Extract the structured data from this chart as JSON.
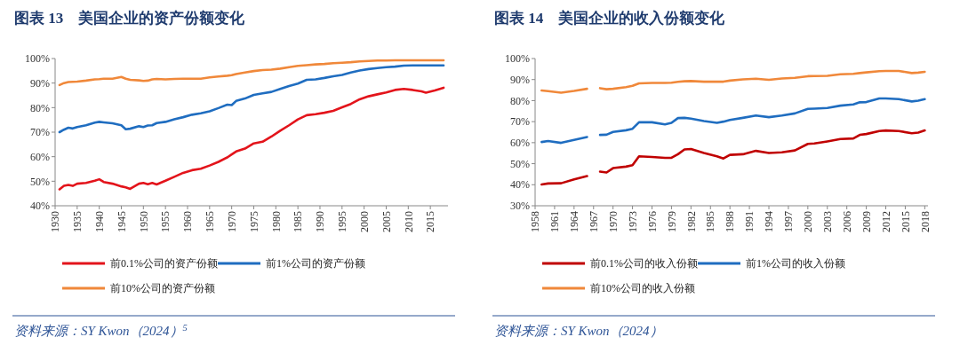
{
  "chart_data": [
    {
      "type": "line",
      "title": "图表 13　美国企业的资产份额变化",
      "legend": "bottom",
      "grid": false,
      "xlim": [
        1930,
        2019
      ],
      "xticks": [
        1930,
        1935,
        1940,
        1945,
        1950,
        1955,
        1960,
        1965,
        1970,
        1975,
        1980,
        1985,
        1990,
        1995,
        2000,
        2005,
        2010,
        2015
      ],
      "ylim": [
        40,
        100
      ],
      "yticks": [
        {
          "value": 40,
          "label": "40%"
        },
        {
          "value": 50,
          "label": "50%"
        },
        {
          "value": 60,
          "label": "60%"
        },
        {
          "value": 70,
          "label": "70%"
        },
        {
          "value": 80,
          "label": "80%"
        },
        {
          "value": 90,
          "label": "90%"
        },
        {
          "value": 100,
          "label": "100%"
        }
      ],
      "x": [
        1931,
        1932,
        1933,
        1934,
        1935,
        1937,
        1939,
        1940,
        1941,
        1943,
        1945,
        1946,
        1947,
        1949,
        1950,
        1951,
        1952,
        1953,
        1955,
        1957,
        1959,
        1961,
        1963,
        1965,
        1967,
        1969,
        1970,
        1971,
        1973,
        1975,
        1977,
        1979,
        1981,
        1983,
        1985,
        1987,
        1989,
        1991,
        1993,
        1995,
        1997,
        1999,
        2001,
        2003,
        2005,
        2007,
        2009,
        2011,
        2013,
        2014,
        2016,
        2018
      ],
      "series": [
        {
          "name": "前0.1%公司的资产份额",
          "color": "#e3141b",
          "values": [
            46.7,
            48.1,
            48.5,
            48.1,
            49.0,
            49.3,
            50.2,
            50.8,
            49.7,
            49.0,
            47.9,
            47.5,
            46.9,
            49.0,
            49.3,
            48.8,
            49.3,
            48.7,
            50.2,
            51.8,
            53.4,
            54.5,
            55.1,
            56.4,
            57.9,
            59.7,
            60.9,
            62.1,
            63.3,
            65.4,
            66.1,
            68.2,
            70.6,
            72.8,
            75.2,
            76.9,
            77.3,
            77.9,
            78.7,
            80.1,
            81.5,
            83.4,
            84.6,
            85.4,
            86.2,
            87.2,
            87.6,
            87.2,
            86.6,
            86.1,
            87.0,
            88.1
          ]
        },
        {
          "name": "前1%公司的资产份额",
          "color": "#1f6dc0",
          "values": [
            70.0,
            71.0,
            71.8,
            71.5,
            72.1,
            72.8,
            73.9,
            74.2,
            74.0,
            73.6,
            72.8,
            71.2,
            71.4,
            72.4,
            72.1,
            72.7,
            72.8,
            73.7,
            74.2,
            75.2,
            76.1,
            77.1,
            77.7,
            78.5,
            79.8,
            81.2,
            81.0,
            82.7,
            83.7,
            85.2,
            85.8,
            86.4,
            87.6,
            88.8,
            89.8,
            91.3,
            91.5,
            92.1,
            92.8,
            93.3,
            94.3,
            95.1,
            95.7,
            96.1,
            96.5,
            96.7,
            97.1,
            97.2,
            97.2,
            97.2,
            97.2,
            97.2
          ]
        },
        {
          "name": "前10%公司的资产份额",
          "color": "#f0883a",
          "values": [
            89.2,
            90.0,
            90.4,
            90.5,
            90.6,
            91.0,
            91.5,
            91.6,
            91.8,
            91.8,
            92.5,
            91.8,
            91.3,
            91.1,
            90.9,
            91.0,
            91.5,
            91.7,
            91.5,
            91.7,
            91.8,
            91.8,
            91.8,
            92.3,
            92.7,
            93.0,
            93.2,
            93.7,
            94.3,
            94.9,
            95.3,
            95.5,
            95.9,
            96.5,
            97.0,
            97.3,
            97.6,
            97.8,
            98.1,
            98.3,
            98.5,
            98.8,
            99.0,
            99.2,
            99.2,
            99.3,
            99.3,
            99.3,
            99.3,
            99.3,
            99.3,
            99.3
          ]
        }
      ],
      "annotations": [
        "资料来源：SY Kwon（2024）$^{5}$"
      ]
    },
    {
      "type": "line",
      "title": "图表 14　美国企业的收入份额变化",
      "legend": "bottom",
      "grid": false,
      "xlim": [
        1958,
        2018.5
      ],
      "xticks": [
        1958,
        1961,
        1964,
        1967,
        1970,
        1973,
        1976,
        1979,
        1982,
        1985,
        1988,
        1991,
        1994,
        1997,
        2000,
        2003,
        2006,
        2009,
        2012,
        2015,
        2018
      ],
      "ylim": [
        30,
        100
      ],
      "yticks": [
        {
          "value": 30,
          "label": "30%"
        },
        {
          "value": 40,
          "label": "40%"
        },
        {
          "value": 50,
          "label": "50%"
        },
        {
          "value": 60,
          "label": "60%"
        },
        {
          "value": 70,
          "label": "70%"
        },
        {
          "value": 80,
          "label": "80%"
        },
        {
          "value": 90,
          "label": "90%"
        },
        {
          "value": 100,
          "label": "100%"
        }
      ],
      "x": [
        1959,
        1960,
        1962,
        1964,
        1966,
        1967,
        1968,
        1969,
        1970,
        1972,
        1973,
        1974,
        1976,
        1978,
        1979,
        1980,
        1981,
        1982,
        1984,
        1986,
        1987,
        1988,
        1990,
        1992,
        1994,
        1996,
        1998,
        2000,
        2001,
        2003,
        2005,
        2007,
        2008,
        2009,
        2011,
        2012,
        2014,
        2016,
        2017,
        2018
      ],
      "series": [
        {
          "name": "前0.1%公司的收入份额",
          "color": "#c00000",
          "values": [
            40.1,
            40.6,
            40.7,
            42.5,
            44.1,
            null,
            46.2,
            45.8,
            47.9,
            48.6,
            49.3,
            53.5,
            53.2,
            52.8,
            52.8,
            54.5,
            56.8,
            57.0,
            55.1,
            53.5,
            52.5,
            54.2,
            54.5,
            56.1,
            55.1,
            55.4,
            56.3,
            59.4,
            59.6,
            60.6,
            61.7,
            62.0,
            63.7,
            64.1,
            65.5,
            65.8,
            65.5,
            64.5,
            64.8,
            65.8
          ]
        },
        {
          "name": "前1%公司的收入份额",
          "color": "#1f6dc0",
          "values": [
            60.3,
            60.8,
            59.9,
            61.3,
            62.7,
            null,
            63.7,
            63.8,
            65.1,
            65.9,
            66.6,
            69.7,
            69.7,
            68.7,
            69.4,
            71.7,
            71.8,
            71.4,
            70.3,
            69.4,
            70.0,
            70.8,
            71.8,
            72.9,
            72.1,
            72.9,
            73.9,
            76.1,
            76.2,
            76.5,
            77.6,
            78.2,
            79.2,
            79.3,
            81.0,
            81.0,
            80.7,
            79.6,
            80.0,
            80.7
          ]
        },
        {
          "name": "前10%公司的收入份额",
          "color": "#f0883a",
          "values": [
            84.8,
            84.5,
            83.8,
            84.6,
            85.6,
            null,
            85.9,
            85.4,
            85.6,
            86.4,
            87.0,
            88.2,
            88.4,
            88.4,
            88.5,
            88.9,
            89.2,
            89.3,
            89.0,
            89.0,
            89.0,
            89.5,
            90.1,
            90.4,
            89.9,
            90.5,
            90.8,
            91.6,
            91.7,
            91.8,
            92.5,
            92.7,
            93.1,
            93.4,
            94.0,
            94.1,
            94.1,
            93.1,
            93.3,
            93.7
          ]
        }
      ],
      "annotations": [
        "资料来源：SY Kwon（2024）"
      ]
    }
  ]
}
